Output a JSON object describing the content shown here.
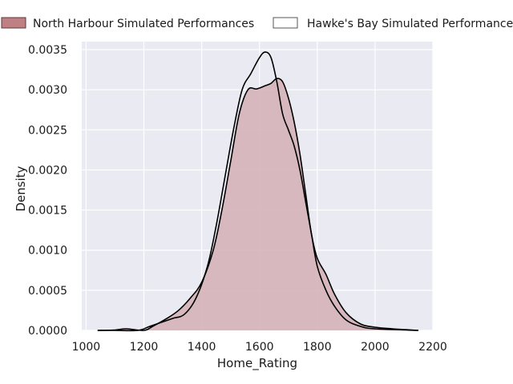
{
  "chart_data": {
    "type": "area",
    "title": "",
    "xlabel": "Home_Rating",
    "ylabel": "Density",
    "xlim": [
      985,
      2200
    ],
    "ylim": [
      0,
      0.0036
    ],
    "xticks": [
      1000,
      1200,
      1400,
      1600,
      1800,
      2000,
      2200
    ],
    "yticks": [
      0.0,
      0.0005,
      0.001,
      0.0015,
      0.002,
      0.0025,
      0.003,
      0.0035
    ],
    "ytick_labels": [
      "0.0000",
      "0.0005",
      "0.0010",
      "0.0015",
      "0.0020",
      "0.0025",
      "0.0030",
      "0.0035"
    ],
    "grid": true,
    "legend_position": "top",
    "series": [
      {
        "name": "North Harbour Simulated Performances",
        "style": "filled",
        "color": "#c08083",
        "fill_color": "#d4b2b8",
        "points": [
          [
            1040,
            0.0
          ],
          [
            1100,
            5e-06
          ],
          [
            1140,
            2e-05
          ],
          [
            1200,
            0.0
          ],
          [
            1230,
            5e-05
          ],
          [
            1280,
            0.00015
          ],
          [
            1320,
            0.00025
          ],
          [
            1360,
            0.0004
          ],
          [
            1400,
            0.0006
          ],
          [
            1440,
            0.001
          ],
          [
            1470,
            0.0015
          ],
          [
            1500,
            0.0021
          ],
          [
            1530,
            0.0027
          ],
          [
            1560,
            0.003
          ],
          [
            1590,
            0.00301
          ],
          [
            1620,
            0.00305
          ],
          [
            1640,
            0.00308
          ],
          [
            1660,
            0.00314
          ],
          [
            1680,
            0.0031
          ],
          [
            1700,
            0.0029
          ],
          [
            1720,
            0.0026
          ],
          [
            1740,
            0.0022
          ],
          [
            1760,
            0.0017
          ],
          [
            1780,
            0.0012
          ],
          [
            1800,
            0.0009
          ],
          [
            1830,
            0.0007
          ],
          [
            1860,
            0.00045
          ],
          [
            1900,
            0.00022
          ],
          [
            1950,
            8e-05
          ],
          [
            2000,
            4e-05
          ],
          [
            2060,
            2e-05
          ],
          [
            2150,
            0.0
          ]
        ]
      },
      {
        "name": "Hawke's Bay Simulated Performances",
        "style": "outline",
        "color": "#000000",
        "fill_color": "none",
        "points": [
          [
            1040,
            0.0
          ],
          [
            1100,
            0.0
          ],
          [
            1180,
            0.0
          ],
          [
            1220,
            5e-05
          ],
          [
            1260,
            0.0001
          ],
          [
            1300,
            0.00015
          ],
          [
            1340,
            0.0002
          ],
          [
            1380,
            0.0004
          ],
          [
            1420,
            0.0008
          ],
          [
            1450,
            0.0013
          ],
          [
            1480,
            0.0019
          ],
          [
            1510,
            0.0025
          ],
          [
            1540,
            0.003
          ],
          [
            1570,
            0.0032
          ],
          [
            1600,
            0.0034
          ],
          [
            1620,
            0.00347
          ],
          [
            1640,
            0.0034
          ],
          [
            1660,
            0.0031
          ],
          [
            1680,
            0.0027
          ],
          [
            1700,
            0.0025
          ],
          [
            1720,
            0.0023
          ],
          [
            1740,
            0.002
          ],
          [
            1760,
            0.0016
          ],
          [
            1780,
            0.0012
          ],
          [
            1800,
            0.0008
          ],
          [
            1830,
            0.0005
          ],
          [
            1860,
            0.0003
          ],
          [
            1900,
            0.00013
          ],
          [
            1950,
            5e-05
          ],
          [
            2000,
            2e-05
          ],
          [
            2150,
            0.0
          ]
        ]
      }
    ]
  },
  "colors": {
    "plot_background": "#eaeaf2",
    "grid": "#ffffff",
    "legend_patch_nh": "#c08083"
  }
}
